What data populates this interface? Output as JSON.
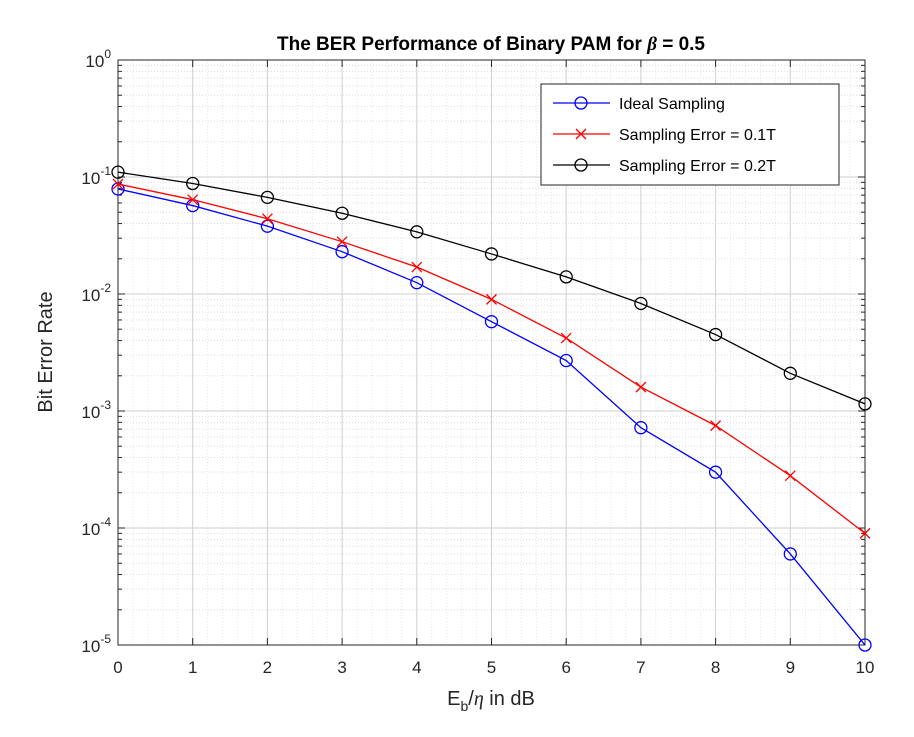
{
  "chart_data": {
    "type": "line",
    "title_prefix": "The BER Performance of Binary PAM for ",
    "title_symbol": "β",
    "title_suffix": " = 0.5",
    "xlabel_main": "E",
    "xlabel_sub": "b",
    "xlabel_rest": "/",
    "xlabel_symbol": "η",
    "xlabel_tail": " in dB",
    "ylabel": "Bit Error Rate",
    "xlim": [
      0,
      10
    ],
    "ylim": [
      1e-05,
      1
    ],
    "yscale": "log",
    "grid": true,
    "minor_grid": true,
    "legend_position": "top-right",
    "x_ticks": [
      "0",
      "1",
      "2",
      "3",
      "4",
      "5",
      "6",
      "7",
      "8",
      "9",
      "10"
    ],
    "y_ticks": [
      {
        "base": "10",
        "exp": "0"
      },
      {
        "base": "10",
        "exp": "-1"
      },
      {
        "base": "10",
        "exp": "-2"
      },
      {
        "base": "10",
        "exp": "-3"
      },
      {
        "base": "10",
        "exp": "-4"
      },
      {
        "base": "10",
        "exp": "-5"
      }
    ],
    "x": [
      0,
      1,
      2,
      3,
      4,
      5,
      6,
      7,
      8,
      9,
      10
    ],
    "series": [
      {
        "name": "Ideal Sampling",
        "color": "#0000ff",
        "marker": "circle",
        "values": [
          0.079,
          0.057,
          0.038,
          0.023,
          0.0125,
          0.0058,
          0.0027,
          0.00072,
          0.0003,
          6e-05,
          1e-05
        ]
      },
      {
        "name": "Sampling Error = 0.1T",
        "color": "#ff0000",
        "marker": "x",
        "values": [
          0.087,
          0.064,
          0.044,
          0.028,
          0.017,
          0.009,
          0.0042,
          0.0016,
          0.00075,
          0.00028,
          9e-05
        ]
      },
      {
        "name": "Sampling Error = 0.2T",
        "color": "#000000",
        "marker": "circle",
        "values": [
          0.11,
          0.088,
          0.067,
          0.049,
          0.034,
          0.022,
          0.014,
          0.0083,
          0.0045,
          0.0021,
          0.00115
        ]
      }
    ]
  }
}
